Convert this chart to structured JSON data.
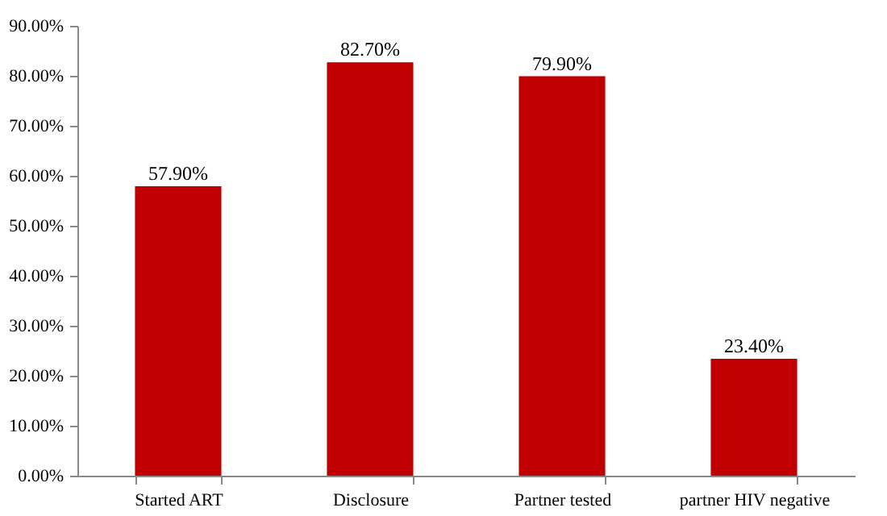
{
  "chart_data": {
    "type": "bar",
    "categories": [
      "Started ART",
      "Disclosure",
      "Partner tested",
      "partner HIV negative"
    ],
    "values": [
      57.9,
      82.7,
      79.9,
      23.4
    ],
    "value_labels": [
      "57.90%",
      "82.70%",
      "79.90%",
      "23.40%"
    ],
    "color": "#c00000",
    "ylim": [
      0,
      90
    ],
    "yticks": [
      {
        "value": 0,
        "label": "0.00%"
      },
      {
        "value": 10,
        "label": "10.00%"
      },
      {
        "value": 20,
        "label": "20.00%"
      },
      {
        "value": 30,
        "label": "30.00%"
      },
      {
        "value": 40,
        "label": "40.00%"
      },
      {
        "value": 50,
        "label": "50.00%"
      },
      {
        "value": 60,
        "label": "60.00%"
      },
      {
        "value": 70,
        "label": "70.00%"
      },
      {
        "value": 80,
        "label": "80.00%"
      },
      {
        "value": 90,
        "label": "90.00%"
      }
    ],
    "grid": false
  }
}
